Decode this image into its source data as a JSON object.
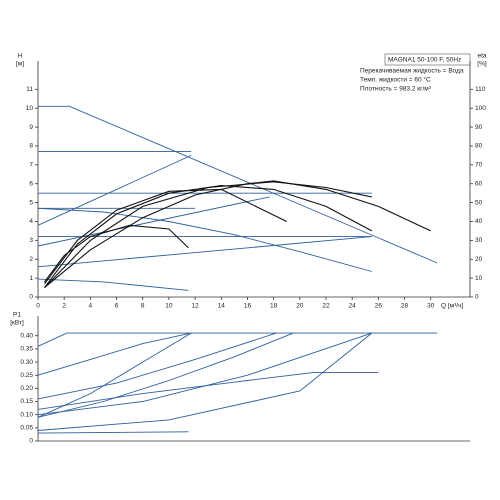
{
  "chart_data": [
    {
      "type": "line",
      "subtitle": "MAGNA1 50-100 F, 50Hz",
      "annotations": [
        "Перекачиваемая жидкость = Вода",
        "Темп. жидкости = 60 °C",
        "Плотность = 983.2 кг/м³"
      ],
      "ylabel": "H",
      "yunit": "[м]",
      "y2label": "eta",
      "y2unit": "[%]",
      "xlabel": "Q [м³/ч]",
      "xlim": [
        0,
        33
      ],
      "xticks": [
        0,
        2,
        4,
        6,
        8,
        10,
        12,
        14,
        16,
        18,
        20,
        22,
        24,
        26,
        28,
        30
      ],
      "ylim": [
        0,
        12.5
      ],
      "yticks": [
        0,
        1,
        2,
        3,
        4,
        5,
        6,
        7,
        8,
        9,
        10,
        11
      ],
      "y2lim": [
        0,
        125
      ],
      "y2ticks": [
        0,
        10,
        20,
        30,
        40,
        50,
        60,
        70,
        80,
        90,
        100,
        110
      ],
      "series": [
        {
          "color": "#2f5f9b",
          "x": [
            0,
            2.4,
            30.5
          ],
          "values": [
            10.1,
            10.1,
            1.8
          ]
        },
        {
          "color": "#2f5f9b",
          "x": [
            0,
            11.7
          ],
          "values": [
            7.7,
            7.7
          ]
        },
        {
          "color": "#2f5f9b",
          "x": [
            0,
            11.7
          ],
          "values": [
            3.8,
            7.5
          ]
        },
        {
          "color": "#2f5f9b",
          "x": [
            0,
            25.5
          ],
          "values": [
            5.5,
            5.5
          ]
        },
        {
          "color": "#2f5f9b",
          "x": [
            0,
            17.7
          ],
          "values": [
            2.7,
            5.3
          ]
        },
        {
          "color": "#2f5f9b",
          "x": [
            0,
            25.5
          ],
          "values": [
            3.2,
            3.2
          ]
        },
        {
          "color": "#2f5f9b",
          "x": [
            0,
            25.5
          ],
          "values": [
            1.6,
            3.2
          ]
        },
        {
          "color": "#2f5f9b",
          "x": [
            0,
            12
          ],
          "values": [
            4.7,
            4.7
          ]
        },
        {
          "color": "#2f5f9b",
          "x": [
            0,
            5,
            10,
            15,
            20,
            25.5
          ],
          "values": [
            4.7,
            4.5,
            4.0,
            3.3,
            2.4,
            1.35
          ]
        },
        {
          "color": "#2f5f9b",
          "x": [
            0,
            5,
            11.5
          ],
          "values": [
            0.95,
            0.8,
            0.35
          ]
        },
        {
          "color": "#111111",
          "axis": "y2",
          "x": [
            0.5,
            4,
            8,
            12,
            16,
            18,
            22,
            26,
            30
          ],
          "values": [
            5,
            25,
            42,
            54,
            60,
            61.5,
            57,
            48,
            35
          ]
        },
        {
          "color": "#111111",
          "axis": "y2",
          "x": [
            0.5,
            3,
            6,
            10,
            14,
            18,
            22,
            25.5
          ],
          "values": [
            5,
            28,
            44,
            55,
            59,
            57,
            48,
            35
          ]
        },
        {
          "color": "#111111",
          "axis": "y2",
          "x": [
            0.5,
            3,
            6,
            10,
            14,
            19
          ],
          "values": [
            7,
            30,
            46,
            56,
            57,
            40
          ]
        },
        {
          "color": "#111111",
          "axis": "y2",
          "x": [
            0.5,
            2,
            4,
            7,
            10,
            11.5
          ],
          "values": [
            8,
            22,
            32,
            38,
            36,
            26
          ]
        },
        {
          "color": "#111111",
          "axis": "y2",
          "x": [
            0.5,
            4,
            8,
            13,
            18,
            22,
            25.5
          ],
          "values": [
            5,
            30,
            48,
            58,
            61,
            58,
            53
          ]
        }
      ]
    },
    {
      "type": "line",
      "ylabel": "P1",
      "yunit": "[кВт]",
      "xlim": [
        0,
        33
      ],
      "ylim": [
        0,
        0.475
      ],
      "yticks": [
        0,
        0.05,
        {
          "value": 0.1,
          "label": "0.10"
        },
        0.15,
        {
          "value": 0.2,
          "label": "0.20"
        },
        0.25,
        {
          "value": 0.3,
          "label": "0.30"
        },
        0.35,
        {
          "value": 0.4,
          "label": "0.40"
        }
      ],
      "series": [
        {
          "color": "#2f5f9b",
          "x": [
            0,
            2.2,
            30.5
          ],
          "values": [
            0.36,
            0.41,
            0.41
          ]
        },
        {
          "color": "#2f5f9b",
          "x": [
            0,
            4,
            8,
            11.7
          ],
          "values": [
            0.25,
            0.31,
            0.37,
            0.41
          ]
        },
        {
          "color": "#2f5f9b",
          "x": [
            0,
            4,
            8,
            11.7
          ],
          "values": [
            0.09,
            0.18,
            0.3,
            0.41
          ]
        },
        {
          "color": "#2f5f9b",
          "x": [
            0,
            6,
            12,
            18.2
          ],
          "values": [
            0.16,
            0.22,
            0.31,
            0.41
          ]
        },
        {
          "color": "#2f5f9b",
          "x": [
            0,
            5,
            10,
            15,
            19.5
          ],
          "values": [
            0.09,
            0.15,
            0.23,
            0.32,
            0.41
          ]
        },
        {
          "color": "#2f5f9b",
          "x": [
            0,
            8,
            16,
            25.5
          ],
          "values": [
            0.1,
            0.15,
            0.25,
            0.41
          ]
        },
        {
          "color": "#2f5f9b",
          "x": [
            0,
            10,
            20,
            25.5
          ],
          "values": [
            0.04,
            0.08,
            0.19,
            0.41
          ]
        },
        {
          "color": "#2f5f9b",
          "x": [
            0,
            8,
            16,
            21,
            26
          ],
          "values": [
            0.12,
            0.18,
            0.23,
            0.26,
            0.26
          ]
        },
        {
          "color": "#2f5f9b",
          "x": [
            0,
            11.5
          ],
          "values": [
            0.03,
            0.035
          ]
        }
      ]
    }
  ]
}
